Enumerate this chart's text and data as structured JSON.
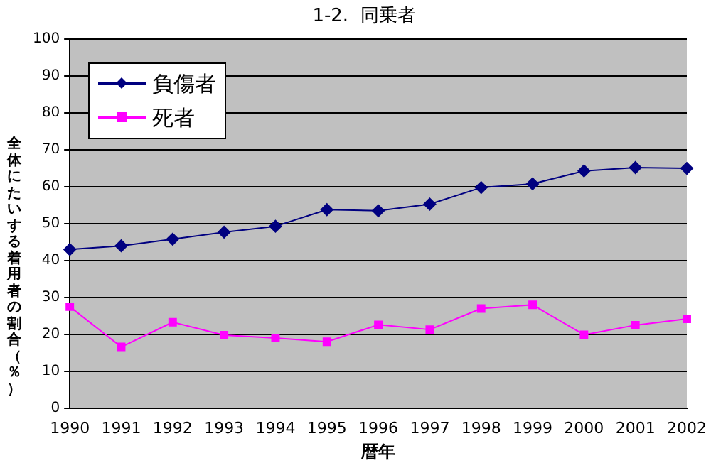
{
  "chart_data": {
    "type": "line",
    "title": "1-2.  同乗者",
    "xlabel": "暦年",
    "ylabel": "全体にたいする着用者の割合（％）",
    "categories": [
      "1990",
      "1991",
      "1992",
      "1993",
      "1994",
      "1995",
      "1996",
      "1997",
      "1998",
      "1999",
      "2000",
      "2001",
      "2002"
    ],
    "series": [
      {
        "name": "負傷者",
        "color": "#000080",
        "marker": "diamond",
        "values": [
          43,
          44,
          45.8,
          47.7,
          49.3,
          53.8,
          53.5,
          55.3,
          59.8,
          60.8,
          64.3,
          65.2,
          65
        ]
      },
      {
        "name": "死者",
        "color": "#ff00ff",
        "marker": "square",
        "values": [
          27.5,
          16.6,
          23.3,
          19.8,
          19,
          18,
          22.6,
          21.3,
          27,
          28,
          19.9,
          22.5,
          24.2
        ]
      }
    ],
    "ylim": [
      0,
      100
    ],
    "yticks": [
      0,
      10,
      20,
      30,
      40,
      50,
      60,
      70,
      80,
      90,
      100
    ],
    "grid": "y",
    "legend": "top left"
  }
}
